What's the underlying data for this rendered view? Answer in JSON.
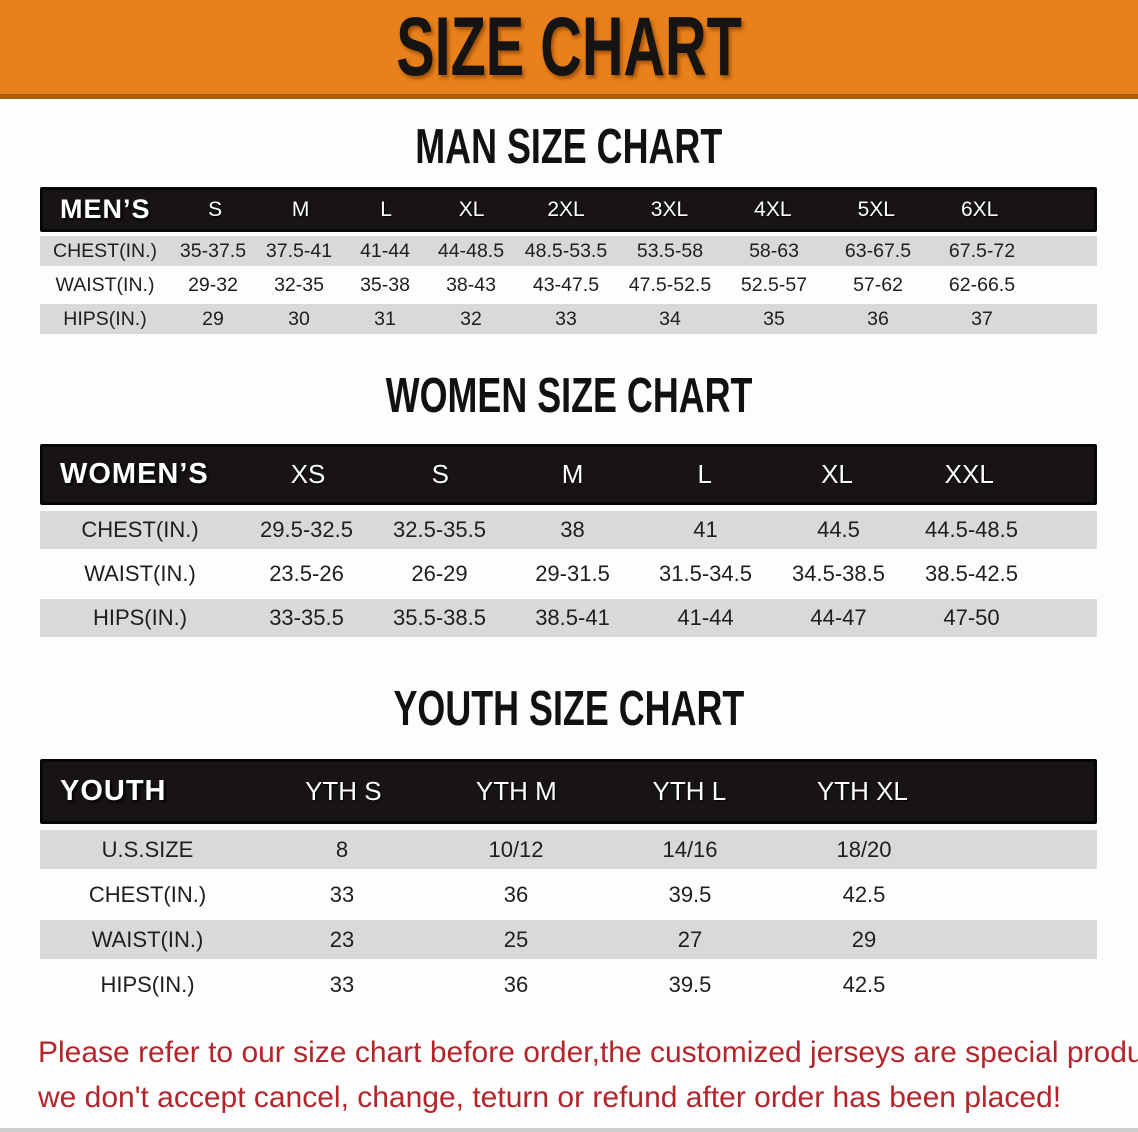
{
  "banner": {
    "title": "SIZE CHART"
  },
  "colors": {
    "banner_orange": "#e8801b",
    "banner_edge": "#a9600f",
    "header_black": "#181414",
    "row_shade": "#d9d9d9",
    "disclaimer_red": "#b4252b"
  },
  "sections": [
    {
      "key": "men",
      "title": "MAN SIZE CHART",
      "corner_label": "MEN’S",
      "columns": [
        "S",
        "M",
        "L",
        "XL",
        "2XL",
        "3XL",
        "4XL",
        "5XL",
        "6XL"
      ],
      "rows": [
        {
          "label": "CHEST(IN.)",
          "values": [
            "35-37.5",
            "37.5-41",
            "41-44",
            "44-48.5",
            "48.5-53.5",
            "53.5-58",
            "58-63",
            "63-67.5",
            "67.5-72"
          ]
        },
        {
          "label": "WAIST(IN.)",
          "values": [
            "29-32",
            "32-35",
            "35-38",
            "38-43",
            "43-47.5",
            "47.5-52.5",
            "52.5-57",
            "57-62",
            "62-66.5"
          ]
        },
        {
          "label": "HIPS(IN.)",
          "values": [
            "29",
            "30",
            "31",
            "32",
            "33",
            "34",
            "35",
            "36",
            "37"
          ]
        }
      ]
    },
    {
      "key": "women",
      "title": "WOMEN SIZE CHART",
      "corner_label": "WOMEN’S",
      "columns": [
        "XS",
        "S",
        "M",
        "L",
        "XL",
        "XXL"
      ],
      "rows": [
        {
          "label": "CHEST(IN.)",
          "values": [
            "29.5-32.5",
            "32.5-35.5",
            "38",
            "41",
            "44.5",
            "44.5-48.5"
          ]
        },
        {
          "label": "WAIST(IN.)",
          "values": [
            "23.5-26",
            "26-29",
            "29-31.5",
            "31.5-34.5",
            "34.5-38.5",
            "38.5-42.5"
          ]
        },
        {
          "label": "HIPS(IN.)",
          "values": [
            "33-35.5",
            "35.5-38.5",
            "38.5-41",
            "41-44",
            "44-47",
            "47-50"
          ]
        }
      ]
    },
    {
      "key": "youth",
      "title": "YOUTH SIZE CHART",
      "corner_label": "YOUTH",
      "columns": [
        "YTH S",
        "YTH M",
        "YTH L",
        "YTH XL"
      ],
      "rows": [
        {
          "label": "U.S.SIZE",
          "values": [
            "8",
            "10/12",
            "14/16",
            "18/20"
          ]
        },
        {
          "label": "CHEST(IN.)",
          "values": [
            "33",
            "36",
            "39.5",
            "42.5"
          ]
        },
        {
          "label": "WAIST(IN.)",
          "values": [
            "23",
            "25",
            "27",
            "29"
          ]
        },
        {
          "label": "HIPS(IN.)",
          "values": [
            "33",
            "36",
            "39.5",
            "42.5"
          ]
        }
      ]
    }
  ],
  "disclaimer": {
    "line1": "Please refer to our size chart before order,the customized jerseys are special products,",
    "line2": "we don't accept cancel, change, teturn or refund after order has been placed!"
  }
}
